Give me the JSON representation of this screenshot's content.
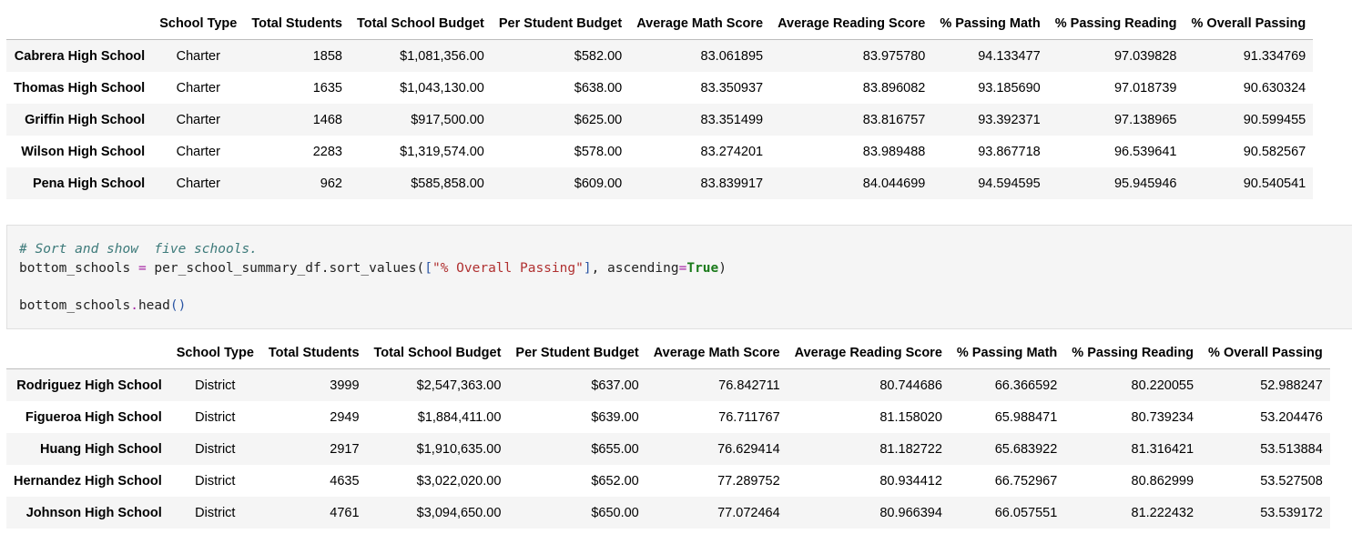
{
  "table_top": {
    "columns": [
      "",
      "School Type",
      "Total Students",
      "Total School Budget",
      "Per Student Budget",
      "Average Math Score",
      "Average Reading Score",
      "% Passing Math",
      "% Passing Reading",
      "% Overall Passing"
    ],
    "rows": [
      [
        "Cabrera High School",
        "Charter",
        "1858",
        "$1,081,356.00",
        "$582.00",
        "83.061895",
        "83.975780",
        "94.133477",
        "97.039828",
        "91.334769"
      ],
      [
        "Thomas High School",
        "Charter",
        "1635",
        "$1,043,130.00",
        "$638.00",
        "83.350937",
        "83.896082",
        "93.185690",
        "97.018739",
        "90.630324"
      ],
      [
        "Griffin High School",
        "Charter",
        "1468",
        "$917,500.00",
        "$625.00",
        "83.351499",
        "83.816757",
        "93.392371",
        "97.138965",
        "90.599455"
      ],
      [
        "Wilson High School",
        "Charter",
        "2283",
        "$1,319,574.00",
        "$578.00",
        "83.274201",
        "83.989488",
        "93.867718",
        "96.539641",
        "90.582567"
      ],
      [
        "Pena High School",
        "Charter",
        "962",
        "$585,858.00",
        "$609.00",
        "83.839917",
        "84.044699",
        "94.594595",
        "95.945946",
        "90.540541"
      ]
    ]
  },
  "code_cell": {
    "comment": "# Sort and show  five schools.",
    "line2": {
      "var": "bottom_schools",
      "op": "=",
      "call": "per_school_summary_df.sort_values(",
      "bracket_open": "[",
      "string": "\"% Overall Passing\"",
      "bracket_close": "]",
      "arg": ", ascending",
      "eq": "=",
      "kw": "True",
      "paren_close": ")"
    },
    "line4": {
      "obj": "bottom_schools",
      "dot": ".",
      "method": "head",
      "parens": "()"
    }
  },
  "table_bottom": {
    "columns": [
      "",
      "School Type",
      "Total Students",
      "Total School Budget",
      "Per Student Budget",
      "Average Math Score",
      "Average Reading Score",
      "% Passing Math",
      "% Passing Reading",
      "% Overall Passing"
    ],
    "rows": [
      [
        "Rodriguez High School",
        "District",
        "3999",
        "$2,547,363.00",
        "$637.00",
        "76.842711",
        "80.744686",
        "66.366592",
        "80.220055",
        "52.988247"
      ],
      [
        "Figueroa High School",
        "District",
        "2949",
        "$1,884,411.00",
        "$639.00",
        "76.711767",
        "81.158020",
        "65.988471",
        "80.739234",
        "53.204476"
      ],
      [
        "Huang High School",
        "District",
        "2917",
        "$1,910,635.00",
        "$655.00",
        "76.629414",
        "81.182722",
        "65.683922",
        "81.316421",
        "53.513884"
      ],
      [
        "Hernandez High School",
        "District",
        "4635",
        "$3,022,020.00",
        "$652.00",
        "77.289752",
        "80.934412",
        "66.752967",
        "80.862999",
        "53.527508"
      ],
      [
        "Johnson High School",
        "District",
        "4761",
        "$3,094,650.00",
        "$650.00",
        "77.072464",
        "80.966394",
        "66.057551",
        "81.222432",
        "53.539172"
      ]
    ]
  }
}
